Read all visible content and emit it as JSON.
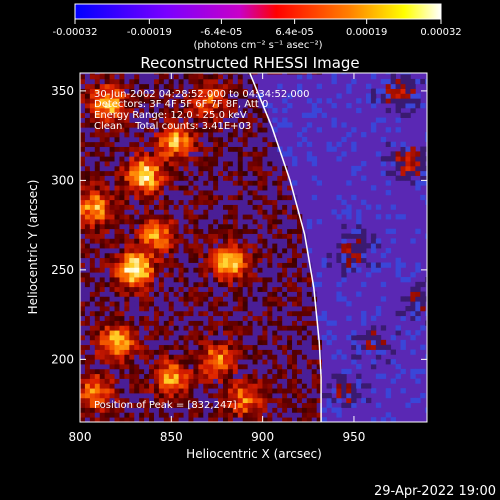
{
  "chart_data": {
    "type": "heatmap",
    "title": "Reconstructed RHESSI Image",
    "xlabel": "Heliocentric X (arcsec)",
    "ylabel": "Heliocentric Y (arcsec)",
    "xlim": [
      800,
      990
    ],
    "ylim": [
      165,
      360
    ],
    "x_ticks": [
      800,
      850,
      900,
      950
    ],
    "y_ticks": [
      200,
      250,
      300,
      350
    ],
    "colorbar": {
      "min": -0.00032,
      "max": 0.00032,
      "tick_values": [
        -0.00032,
        -0.00019,
        -6.4e-05,
        6.4e-05,
        0.00019,
        0.00032
      ],
      "tick_labels": [
        "-0.00032",
        "-0.00019",
        "-6.4e-05",
        "6.4e-05",
        "0.00019",
        "0.00032"
      ],
      "units_label": "(photons cm⁻² s⁻¹ asec⁻²)",
      "colors": [
        "#0000ff",
        "#7a00ff",
        "#c800c8",
        "#ff0000",
        "#ff8000",
        "#ffff00",
        "#ffffff"
      ]
    },
    "annotations": [
      "30-Jun-2002 04:28:52.000 to 04:34:52.000",
      "Detectors: 3F 4F 5F 6F 7F 8F, Att 0",
      "Energy Range: 12.0 - 25.0 keV",
      "Clean    Total counts: 3.41E+03"
    ],
    "peak_label": "Position of Peak = [832,247]",
    "peak_position": [
      832,
      247
    ],
    "limb_curve": [
      [
        893,
        360
      ],
      [
        905,
        330
      ],
      [
        915,
        300
      ],
      [
        923,
        270
      ],
      [
        928,
        240
      ],
      [
        931,
        210
      ],
      [
        932,
        190
      ],
      [
        932,
        165
      ]
    ],
    "background_color": "#5a28b4",
    "bright_sources": [
      {
        "x": 830,
        "y": 250,
        "level": 1.0
      },
      {
        "x": 835,
        "y": 303,
        "level": 0.9
      },
      {
        "x": 815,
        "y": 343,
        "level": 0.75
      },
      {
        "x": 852,
        "y": 322,
        "level": 0.7
      },
      {
        "x": 808,
        "y": 285,
        "level": 0.7
      },
      {
        "x": 842,
        "y": 270,
        "level": 0.65
      },
      {
        "x": 882,
        "y": 254,
        "level": 0.75
      },
      {
        "x": 820,
        "y": 210,
        "level": 0.75
      },
      {
        "x": 850,
        "y": 190,
        "level": 0.65
      },
      {
        "x": 875,
        "y": 200,
        "level": 0.6
      },
      {
        "x": 808,
        "y": 182,
        "level": 0.6
      },
      {
        "x": 890,
        "y": 178,
        "level": 0.55
      },
      {
        "x": 870,
        "y": 345,
        "level": 0.5
      },
      {
        "x": 980,
        "y": 310,
        "level": 0.5
      },
      {
        "x": 975,
        "y": 348,
        "level": 0.45
      },
      {
        "x": 950,
        "y": 260,
        "level": 0.35
      },
      {
        "x": 960,
        "y": 210,
        "level": 0.3
      },
      {
        "x": 945,
        "y": 180,
        "level": 0.3
      },
      {
        "x": 985,
        "y": 232,
        "level": 0.3
      }
    ]
  },
  "footer": {
    "timestamp": "29-Apr-2022 19:00"
  }
}
